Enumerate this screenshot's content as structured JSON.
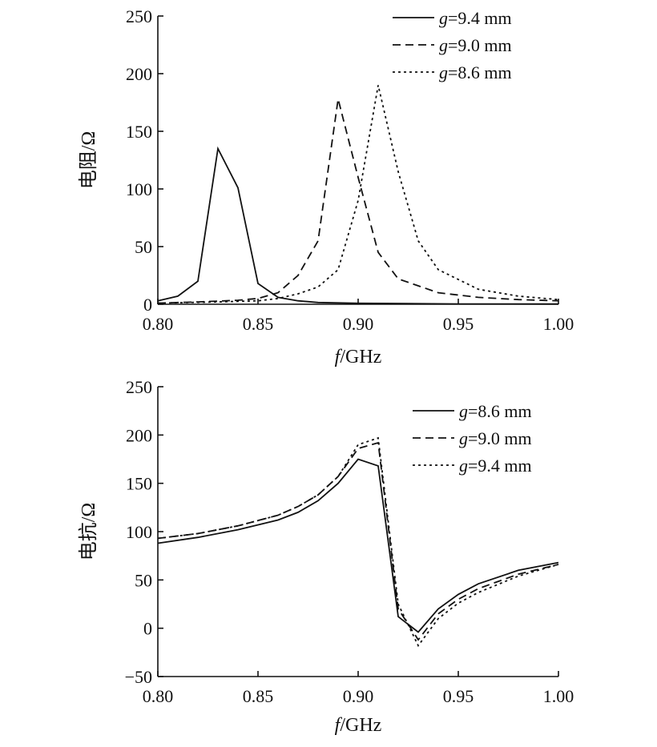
{
  "chart_data": [
    {
      "type": "line",
      "xlabel_italic": "f",
      "xlabel_unit": "/GHz",
      "ylabel": "电阻/Ω",
      "xlim": [
        0.8,
        1.0
      ],
      "ylim": [
        0,
        250
      ],
      "xticks": [
        "0.80",
        "0.85",
        "0.90",
        "0.95",
        "1.00"
      ],
      "yticks": [
        "0",
        "50",
        "100",
        "150",
        "200",
        "250"
      ],
      "legend_position": "top-right",
      "series": [
        {
          "name_prefix": "g",
          "name_suffix": "=9.4 mm",
          "style": "solid",
          "x": [
            0.8,
            0.81,
            0.82,
            0.83,
            0.84,
            0.85,
            0.86,
            0.87,
            0.88,
            0.9,
            0.95,
            1.0
          ],
          "values": [
            3,
            7,
            20,
            135,
            101,
            18,
            6,
            3,
            1.5,
            0.8,
            0.3,
            0.2
          ]
        },
        {
          "name_prefix": "g",
          "name_suffix": "=9.0 mm",
          "style": "dashed",
          "x": [
            0.8,
            0.82,
            0.84,
            0.85,
            0.86,
            0.87,
            0.88,
            0.89,
            0.9,
            0.91,
            0.92,
            0.94,
            0.96,
            0.98,
            1.0
          ],
          "values": [
            1,
            2,
            3.5,
            5,
            10,
            25,
            55,
            178,
            110,
            45,
            22,
            10,
            6,
            4,
            3
          ]
        },
        {
          "name_prefix": "g",
          "name_suffix": "=8.6 mm",
          "style": "dotted",
          "x": [
            0.8,
            0.83,
            0.85,
            0.86,
            0.87,
            0.88,
            0.89,
            0.9,
            0.91,
            0.92,
            0.93,
            0.94,
            0.96,
            0.98,
            1.0
          ],
          "values": [
            1,
            2,
            3,
            5,
            9,
            15,
            30,
            90,
            190,
            115,
            55,
            30,
            13,
            7,
            4
          ]
        }
      ]
    },
    {
      "type": "line",
      "xlabel_italic": "f",
      "xlabel_unit": "/GHz",
      "ylabel": "电抗/Ω",
      "xlim": [
        0.8,
        1.0
      ],
      "ylim": [
        -50,
        250
      ],
      "xticks": [
        "0.80",
        "0.85",
        "0.90",
        "0.95",
        "1.00"
      ],
      "yticks": [
        "−50",
        "0",
        "50",
        "100",
        "150",
        "200",
        "250"
      ],
      "legend_position": "top-right",
      "series": [
        {
          "name_prefix": "g",
          "name_suffix": "=8.6 mm",
          "style": "solid",
          "x": [
            0.8,
            0.82,
            0.84,
            0.86,
            0.87,
            0.88,
            0.89,
            0.9,
            0.91,
            0.92,
            0.93,
            0.94,
            0.95,
            0.96,
            0.98,
            1.0
          ],
          "values": [
            88,
            94,
            102,
            112,
            120,
            132,
            150,
            175,
            168,
            12,
            -4,
            20,
            35,
            46,
            60,
            68
          ]
        },
        {
          "name_prefix": "g",
          "name_suffix": "=9.0 mm",
          "style": "dashed",
          "x": [
            0.8,
            0.82,
            0.84,
            0.86,
            0.87,
            0.88,
            0.89,
            0.9,
            0.91,
            0.92,
            0.93,
            0.94,
            0.95,
            0.96,
            0.98,
            1.0
          ],
          "values": [
            93,
            98,
            106,
            117,
            126,
            138,
            157,
            186,
            192,
            20,
            -12,
            15,
            30,
            41,
            56,
            66
          ]
        },
        {
          "name_prefix": "g",
          "name_suffix": "=9.4 mm",
          "style": "dotted",
          "x": [
            0.8,
            0.82,
            0.84,
            0.86,
            0.87,
            0.88,
            0.89,
            0.9,
            0.91,
            0.92,
            0.93,
            0.94,
            0.95,
            0.96,
            0.98,
            1.0
          ],
          "values": [
            93,
            98,
            106,
            117,
            126,
            138,
            157,
            190,
            197,
            25,
            -18,
            10,
            26,
            37,
            54,
            66
          ]
        }
      ]
    }
  ]
}
